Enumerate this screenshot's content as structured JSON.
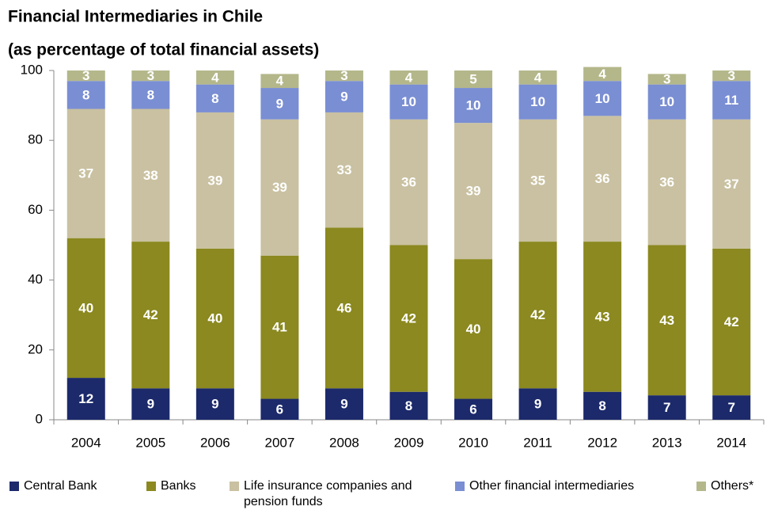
{
  "chart_data": {
    "type": "stacked_bar",
    "title": "Financial Intermediaries in Chile",
    "subtitle": "(as percentage of total financial assets)",
    "categories": [
      "2004",
      "2005",
      "2006",
      "2007",
      "2008",
      "2009",
      "2010",
      "2011",
      "2012",
      "2013",
      "2014"
    ],
    "series": [
      {
        "name": "Central Bank",
        "color": "#1c2a6b",
        "values": [
          12,
          9,
          9,
          6,
          9,
          8,
          6,
          9,
          8,
          7,
          7
        ]
      },
      {
        "name": "Banks",
        "color": "#8b891f",
        "values": [
          40,
          42,
          40,
          41,
          46,
          42,
          40,
          42,
          43,
          43,
          42
        ]
      },
      {
        "name": "Life insurance companies and pension funds",
        "color": "#c9c1a1",
        "values": [
          37,
          38,
          39,
          39,
          33,
          36,
          39,
          35,
          36,
          36,
          37
        ]
      },
      {
        "name": "Other financial intermediaries",
        "color": "#7a8ed3",
        "values": [
          8,
          8,
          8,
          9,
          9,
          10,
          10,
          10,
          10,
          10,
          11
        ]
      },
      {
        "name": "Others*",
        "color": "#b4b78a",
        "values": [
          3,
          3,
          4,
          4,
          3,
          4,
          5,
          4,
          4,
          3,
          3
        ]
      }
    ],
    "ylim": [
      0,
      100
    ],
    "yticks": [
      0,
      20,
      40,
      60,
      80,
      100
    ],
    "grid": false
  }
}
